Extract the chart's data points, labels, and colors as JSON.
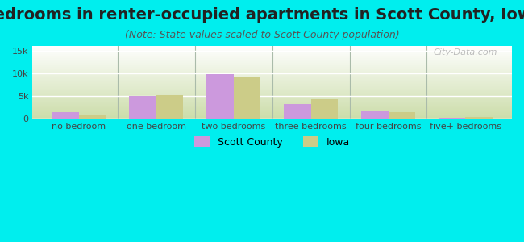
{
  "title": "Bedrooms in renter-occupied apartments in Scott County, Iowa",
  "subtitle": "(Note: State values scaled to Scott County population)",
  "categories": [
    "no bedroom",
    "one bedroom",
    "two bedrooms",
    "three bedrooms",
    "four bedrooms",
    "five+ bedrooms"
  ],
  "scott_county": [
    1500,
    5000,
    9700,
    3200,
    1800,
    200
  ],
  "iowa": [
    900,
    5100,
    9100,
    4300,
    1400,
    400
  ],
  "scott_color": "#cc99dd",
  "iowa_color": "#cccc88",
  "bg_outer": "#00eeee",
  "bg_chart_top": "#ffffff",
  "bg_chart_bottom": "#ccddaa",
  "ylim": [
    0,
    16000
  ],
  "yticks": [
    0,
    5000,
    10000,
    15000
  ],
  "ytick_labels": [
    "0",
    "5k",
    "10k",
    "15k"
  ],
  "bar_width": 0.35,
  "title_fontsize": 14,
  "subtitle_fontsize": 9,
  "tick_fontsize": 8,
  "legend_labels": [
    "Scott County",
    "Iowa"
  ],
  "watermark": "City-Data.com"
}
